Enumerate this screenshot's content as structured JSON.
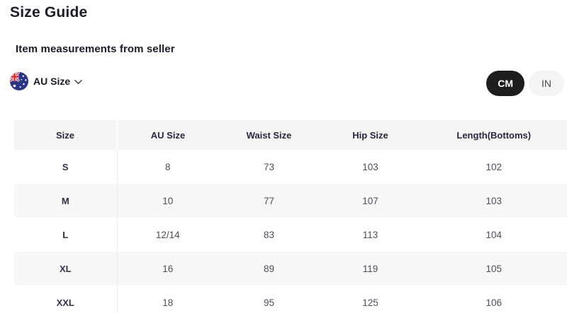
{
  "page": {
    "title": "Size Guide"
  },
  "section": {
    "heading": "Item measurements from seller"
  },
  "region_selector": {
    "label": "AU Size",
    "flag_icon": "au-flag-icon",
    "chevron_icon": "chevron-down-icon"
  },
  "unit_toggle": {
    "options": [
      {
        "label": "CM",
        "selected": true
      },
      {
        "label": "IN",
        "selected": false
      }
    ]
  },
  "table": {
    "columns": [
      "Size",
      "AU Size",
      "Waist Size",
      "Hip Size",
      "Length(Bottoms)"
    ],
    "rows": [
      [
        "S",
        "8",
        "73",
        "103",
        "102"
      ],
      [
        "M",
        "10",
        "77",
        "107",
        "103"
      ],
      [
        "L",
        "12/14",
        "83",
        "113",
        "104"
      ],
      [
        "XL",
        "16",
        "89",
        "119",
        "105"
      ],
      [
        "XXL",
        "18",
        "95",
        "125",
        "106"
      ]
    ]
  },
  "colors": {
    "title_text": "#1b1b29",
    "pill_selected_bg": "#1e1e1e",
    "pill_selected_text": "#ffffff",
    "pill_unselected_bg": "#f4f4f4",
    "table_header_bg": "#f5f5f5",
    "table_stripe_bg": "#f7f7f7",
    "flag_navy": "#2a3587",
    "flag_red": "#d8272e"
  }
}
